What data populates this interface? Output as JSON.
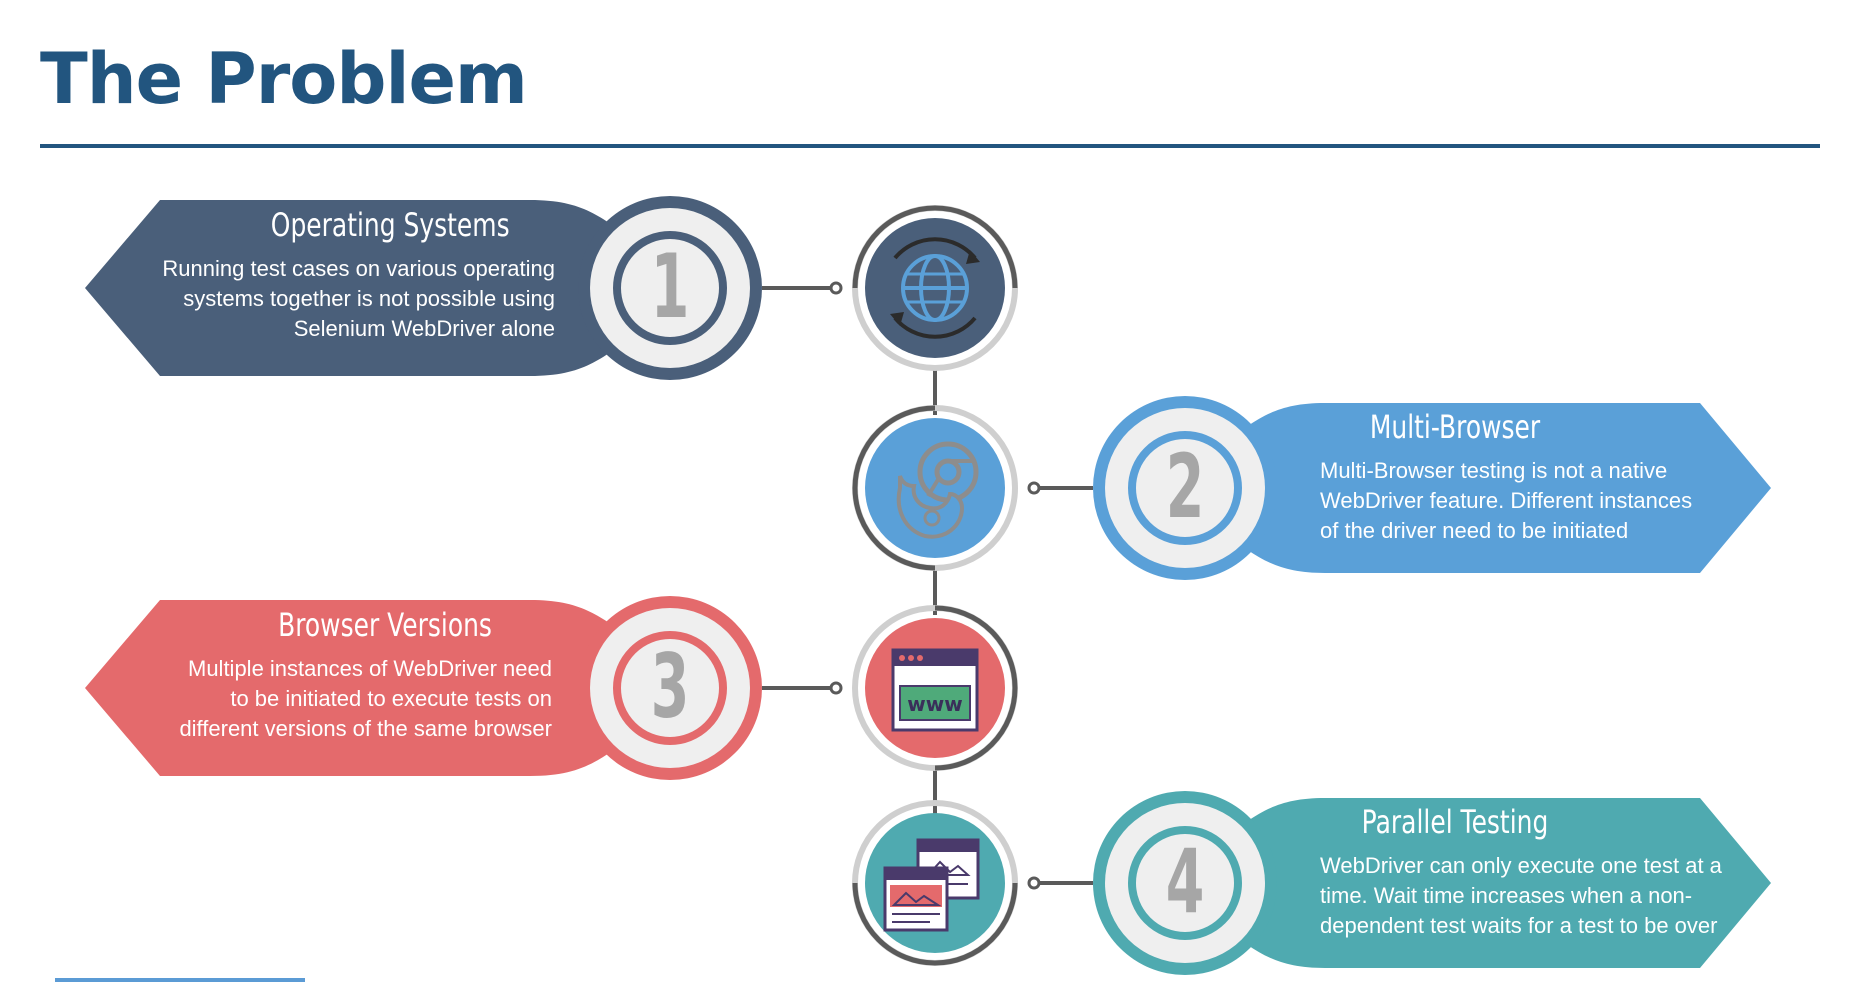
{
  "page": {
    "title": "The Problem"
  },
  "colors": {
    "title": "#22557f",
    "item1": "#4a5f7a",
    "item2": "#5aa0d8",
    "item3": "#e46a6c",
    "item4": "#4faab0",
    "hub_ring": "#5a5a5a",
    "number": "#a6a6a6"
  },
  "items": [
    {
      "number": "1",
      "title": "Operating Systems",
      "description": [
        "Running test cases on various operating",
        "systems together is not possible using",
        "Selenium WebDriver alone"
      ],
      "icon": "globe-refresh-icon",
      "side": "left"
    },
    {
      "number": "2",
      "title": "Multi-Browser",
      "description": [
        "Multi-Browser testing is not a native",
        "WebDriver feature. Different instances",
        "of the driver need to be initiated"
      ],
      "icon": "browsers-chrome-firefox-icon",
      "side": "right"
    },
    {
      "number": "3",
      "title": "Browser Versions",
      "description": [
        "Multiple instances of WebDriver need",
        "to be initiated to execute tests on",
        "different versions of the same browser"
      ],
      "icon": "browser-window-www-icon",
      "icon_text": "www",
      "side": "left"
    },
    {
      "number": "4",
      "title": "Parallel Testing",
      "description": [
        "WebDriver can only execute one test at a",
        "time. Wait time increases when a non-",
        "dependent test waits for a test to be over"
      ],
      "icon": "parallel-windows-icon",
      "side": "right"
    }
  ]
}
